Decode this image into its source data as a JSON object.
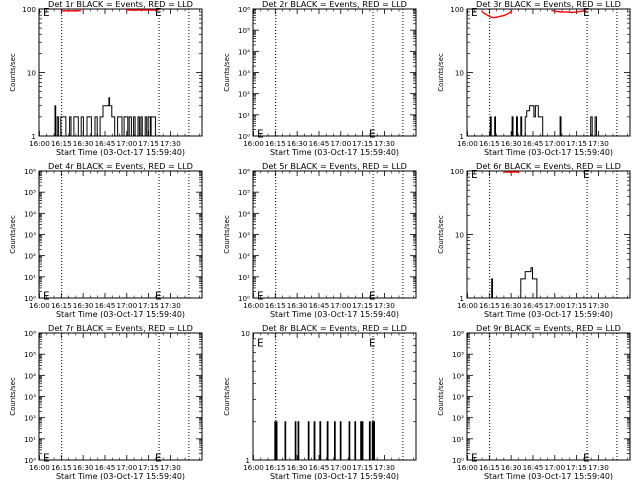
{
  "chart_data": [
    {
      "type": "line",
      "title": "Det 1r BLACK = Events, RED = LLD",
      "xlabel": "Start Time (03-Oct-17 15:59:40)",
      "ylabel": "Counts/sec",
      "y_scale": "log",
      "ylim": [
        1,
        100
      ],
      "y_tick_labels": [
        "1",
        "10",
        "100"
      ],
      "x_range_minutes": [
        0,
        112
      ],
      "x_tick_labels": [
        "16:00",
        "16:15",
        "16:30",
        "16:45",
        "17:00",
        "17:15",
        "17:30"
      ],
      "x_tick_minutes": [
        0.33,
        15.33,
        30.33,
        45.33,
        60.33,
        75.33,
        90.33
      ],
      "dotted_lines_minutes": [
        15.6,
        82.5,
        103
      ],
      "e_marker": {
        "label": "E",
        "x": [
          5,
          82
        ],
        "y": 97
      },
      "series": [
        {
          "color": "#000000",
          "x": [
            0,
            11,
            11,
            11.5,
            11.5,
            12.5,
            12.5,
            13.5,
            13.5,
            15,
            15,
            18.5,
            18.5,
            21,
            21,
            22,
            22,
            24,
            24,
            27,
            27,
            29,
            29,
            30.5,
            30.5,
            33,
            33,
            36,
            36,
            38.5,
            38.5,
            40,
            40,
            42,
            42,
            44,
            44,
            48,
            48,
            48.5,
            48.5,
            50,
            50,
            52,
            52,
            54,
            54,
            57,
            57,
            58.5,
            58.5,
            61,
            61,
            62,
            62,
            63.5,
            63.5,
            65,
            65,
            66,
            66,
            68,
            68,
            69,
            69,
            70,
            70,
            71,
            71,
            73,
            73,
            74,
            74,
            75,
            75,
            76.5,
            76.5,
            77,
            77,
            80,
            80,
            112
          ],
          "y": [
            1,
            1,
            3,
            3,
            1,
            1,
            2,
            2,
            1,
            1,
            2,
            2,
            1,
            1,
            2,
            2,
            1,
            1,
            2,
            2,
            1,
            1,
            2,
            2,
            1,
            1,
            2,
            2,
            1,
            1,
            2,
            2,
            1,
            1,
            2,
            2,
            3,
            3,
            4,
            4,
            3,
            3,
            2,
            2,
            1,
            1,
            2,
            2,
            1,
            1,
            2,
            2,
            1,
            1,
            2,
            2,
            1,
            1,
            2,
            2,
            1,
            1,
            2,
            2,
            1,
            1,
            2,
            2,
            1,
            1,
            2,
            2,
            1,
            1,
            2,
            2,
            1,
            1,
            2,
            2,
            1,
            1
          ]
        },
        {
          "color": "#ff0000",
          "x": [
            15.6,
            17,
            18.5,
            20,
            21.5,
            23,
            25,
            27,
            28.8
          ],
          "y": [
            95,
            93,
            94,
            93,
            93.5,
            94,
            93,
            94,
            95
          ]
        },
        {
          "color": "#ff0000",
          "x": [
            60,
            62,
            64,
            66,
            68,
            70,
            72,
            74,
            76,
            78,
            80,
            82
          ],
          "y": [
            97,
            96,
            96,
            96,
            96,
            96,
            96,
            96,
            96,
            96,
            96,
            97
          ]
        }
      ]
    },
    {
      "type": "line",
      "title": "Det 2r BLACK = Events, RED = LLD",
      "xlabel": "Start Time (03-Oct-17 15:59:40)",
      "ylabel": "Counts/sec",
      "y_scale": "log",
      "ylim": [
        1,
        1000000
      ],
      "y_tick_labels": [
        "10⁰",
        "10¹",
        "10²",
        "10³",
        "10⁴",
        "10⁵",
        "10⁶"
      ],
      "x_range_minutes": [
        0,
        112
      ],
      "x_tick_labels": [
        "16:00",
        "16:15",
        "16:30",
        "16:45",
        "17:00",
        "17:15",
        "17:30"
      ],
      "x_tick_minutes": [
        0.33,
        15.33,
        30.33,
        45.33,
        60.33,
        75.33,
        90.33
      ],
      "dotted_lines_minutes": [
        15.6,
        82.5,
        103
      ],
      "e_marker": {
        "label": "E",
        "x": [
          5,
          82
        ],
        "y": 1.6
      },
      "series": []
    },
    {
      "type": "line",
      "title": "Det 3r BLACK = Events, RED = LLD",
      "xlabel": "Start Time (03-Oct-17 15:59:40)",
      "ylabel": "Counts/sec",
      "y_scale": "log",
      "ylim": [
        1,
        100
      ],
      "y_tick_labels": [
        "1",
        "10",
        "100"
      ],
      "x_range_minutes": [
        0,
        112
      ],
      "x_tick_labels": [
        "16:00",
        "16:15",
        "16:30",
        "16:45",
        "17:00",
        "17:15",
        "17:30"
      ],
      "x_tick_minutes": [
        0.33,
        15.33,
        30.33,
        45.33,
        60.33,
        75.33,
        90.33
      ],
      "dotted_lines_minutes": [
        15.6,
        82.5,
        103
      ],
      "e_marker": {
        "label": "E",
        "x": [
          5,
          82
        ],
        "y": 97
      },
      "series": [
        {
          "color": "#000000",
          "x": [
            0,
            16,
            16,
            16.6,
            16.6,
            19,
            19,
            19.6,
            19.6,
            31,
            31,
            31.6,
            31.6,
            34,
            34,
            34.6,
            34.6,
            37,
            37,
            37.6,
            37.6,
            40,
            40,
            41,
            41,
            43,
            43,
            46,
            46,
            47,
            47,
            49,
            49,
            52,
            52,
            52.6,
            52.6,
            64,
            64,
            64.6,
            64.6,
            85,
            85,
            86,
            86,
            88,
            88,
            89,
            89,
            112
          ],
          "y": [
            1,
            1,
            2,
            2,
            1,
            1,
            2,
            2,
            1,
            1,
            2,
            2,
            1,
            1,
            2,
            2,
            1,
            1,
            2,
            2,
            1,
            1,
            2,
            2,
            2.5,
            2.5,
            3,
            3,
            2,
            2,
            3,
            3,
            2,
            2,
            1,
            1,
            1,
            1,
            2,
            2,
            1,
            1,
            2,
            2,
            1,
            1,
            2,
            2,
            1,
            1
          ]
        },
        {
          "color": "#ff0000",
          "x": [
            10,
            12,
            14,
            16,
            18,
            20,
            22,
            24,
            26,
            28,
            30,
            31
          ],
          "y": [
            92,
            85,
            80,
            75,
            73,
            74,
            76,
            78,
            80,
            84,
            90,
            95
          ]
        },
        {
          "color": "#ff0000",
          "x": [
            58,
            60,
            62,
            64,
            66,
            68,
            70,
            72,
            74,
            76,
            78,
            80,
            82
          ],
          "y": [
            95,
            93,
            91,
            90,
            90,
            90,
            89,
            88,
            89,
            90,
            92,
            93,
            95
          ]
        }
      ]
    },
    {
      "type": "line",
      "title": "Det 4r BLACK = Events, RED = LLD",
      "xlabel": "Start Time (03-Oct-17 15:59:40)",
      "ylabel": "Counts/sec",
      "y_scale": "log",
      "ylim": [
        1,
        1000000
      ],
      "y_tick_labels": [
        "10⁰",
        "10¹",
        "10²",
        "10³",
        "10⁴",
        "10⁵",
        "10⁶"
      ],
      "x_range_minutes": [
        0,
        112
      ],
      "x_tick_labels": [
        "16:00",
        "16:15",
        "16:30",
        "16:45",
        "17:00",
        "17:15",
        "17:30"
      ],
      "x_tick_minutes": [
        0.33,
        15.33,
        30.33,
        45.33,
        60.33,
        75.33,
        90.33
      ],
      "dotted_lines_minutes": [
        15.6,
        82.5,
        103
      ],
      "e_marker": {
        "label": "E",
        "x": [
          5,
          82
        ],
        "y": 1.6
      },
      "series": []
    },
    {
      "type": "line",
      "title": "Det 5r BLACK = Events, RED = LLD",
      "xlabel": "Start Time (03-Oct-17 15:59:40)",
      "ylabel": "Counts/sec",
      "y_scale": "log",
      "ylim": [
        1,
        1000000
      ],
      "y_tick_labels": [
        "10⁰",
        "10¹",
        "10²",
        "10³",
        "10⁴",
        "10⁵",
        "10⁶"
      ],
      "x_range_minutes": [
        0,
        112
      ],
      "x_tick_labels": [
        "16:00",
        "16:15",
        "16:30",
        "16:45",
        "17:00",
        "17:15",
        "17:30"
      ],
      "x_tick_minutes": [
        0.33,
        15.33,
        30.33,
        45.33,
        60.33,
        75.33,
        90.33
      ],
      "dotted_lines_minutes": [
        15.6,
        82.5,
        103
      ],
      "e_marker": {
        "label": "E",
        "x": [
          5,
          82
        ],
        "y": 1.6
      },
      "series": []
    },
    {
      "type": "line",
      "title": "Det 6r BLACK = Events, RED = LLD",
      "xlabel": "Start Time (03-Oct-17 15:59:40)",
      "ylabel": "Counts/sec",
      "y_scale": "log",
      "ylim": [
        1,
        100
      ],
      "y_tick_labels": [
        "1",
        "10",
        "100"
      ],
      "x_range_minutes": [
        0,
        112
      ],
      "x_tick_labels": [
        "16:00",
        "16:15",
        "16:30",
        "16:45",
        "17:00",
        "17:15",
        "17:30"
      ],
      "x_tick_minutes": [
        0.33,
        15.33,
        30.33,
        45.33,
        60.33,
        75.33,
        90.33
      ],
      "dotted_lines_minutes": [
        15.6,
        82.5,
        103
      ],
      "e_marker": {
        "label": "E",
        "x": [
          5,
          82
        ],
        "y": 97
      },
      "series": [
        {
          "color": "#000000",
          "x": [
            0,
            17,
            17,
            17.5,
            17.5,
            37,
            37,
            40,
            40,
            44,
            44,
            45,
            45,
            48,
            48,
            49,
            49,
            112
          ],
          "y": [
            1,
            1,
            2,
            2,
            1,
            1,
            2,
            2,
            2.6,
            2.6,
            3,
            3,
            2,
            2,
            1,
            1,
            1,
            1
          ]
        },
        {
          "color": "#ff0000",
          "x": [
            25,
            27,
            29,
            31,
            33,
            35,
            36
          ],
          "y": [
            97,
            96,
            96,
            96,
            96,
            96,
            97
          ]
        }
      ]
    },
    {
      "type": "line",
      "title": "Det 7r BLACK = Events, RED = LLD",
      "xlabel": "Start Time (03-Oct-17 15:59:40)",
      "ylabel": "Counts/sec",
      "y_scale": "log",
      "ylim": [
        1,
        1000000
      ],
      "y_tick_labels": [
        "10⁰",
        "10¹",
        "10²",
        "10³",
        "10⁴",
        "10⁵",
        "10⁶"
      ],
      "x_range_minutes": [
        0,
        112
      ],
      "x_tick_labels": [
        "16:00",
        "16:15",
        "16:30",
        "16:45",
        "17:00",
        "17:15",
        "17:30"
      ],
      "x_tick_minutes": [
        0.33,
        15.33,
        30.33,
        45.33,
        60.33,
        75.33,
        90.33
      ],
      "dotted_lines_minutes": [
        15.6,
        82.5,
        103
      ],
      "e_marker": {
        "label": "E",
        "x": [
          5,
          82
        ],
        "y": 1.6
      },
      "series": []
    },
    {
      "type": "line",
      "title": "Det 8r BLACK = Events, RED = LLD",
      "xlabel": "Start Time (03-Oct-17 15:59:40)",
      "ylabel": "Counts/sec",
      "y_scale": "log",
      "ylim": [
        1,
        10
      ],
      "y_tick_labels": [
        "1",
        "10"
      ],
      "x_range_minutes": [
        0,
        112
      ],
      "x_tick_labels": [
        "16:00",
        "16:15",
        "16:30",
        "16:45",
        "17:00",
        "17:15",
        "17:30"
      ],
      "x_tick_minutes": [
        0.33,
        15.33,
        30.33,
        45.33,
        60.33,
        75.33,
        90.33
      ],
      "dotted_lines_minutes": [
        15.6,
        82.5,
        103
      ],
      "e_marker": {
        "label": "E",
        "x": [
          5,
          82
        ],
        "y": 8.7
      },
      "series": [
        {
          "color": "#000000",
          "x": [
            0,
            15,
            15,
            15.5,
            15.5,
            16,
            16,
            16.5,
            16.5,
            22,
            22,
            22.5,
            22.5,
            29,
            29,
            29.5,
            29.5,
            31,
            31,
            31.5,
            31.5,
            38,
            38,
            38.5,
            38.5,
            42,
            42,
            42.5,
            42.5,
            46,
            46,
            46.5,
            46.5,
            51,
            51,
            51.5,
            51.5,
            56,
            56,
            56.5,
            56.5,
            60,
            60,
            60.5,
            60.5,
            66,
            66,
            66.5,
            66.5,
            70,
            70,
            70.5,
            70.5,
            74,
            74,
            74.5,
            74.5,
            75,
            75,
            75.5,
            75.5,
            80,
            80,
            80.5,
            80.5,
            82,
            82,
            82.5,
            82.5,
            83,
            83,
            83.5,
            83.5,
            112
          ],
          "y": [
            1,
            1,
            2,
            2,
            1,
            1,
            2,
            2,
            1,
            1,
            2,
            2,
            1,
            1,
            2,
            2,
            1,
            1,
            2,
            2,
            1,
            1,
            2,
            2,
            1,
            1,
            2,
            2,
            1,
            1,
            2,
            2,
            1,
            1,
            2,
            2,
            1,
            1,
            2,
            2,
            1,
            1,
            2,
            2,
            1,
            1,
            2,
            2,
            1,
            1,
            2,
            2,
            1,
            1,
            2,
            2,
            1,
            1,
            2,
            2,
            1,
            1,
            2,
            2,
            1,
            1,
            2,
            2,
            1,
            1,
            2,
            2,
            1,
            1
          ]
        }
      ]
    },
    {
      "type": "line",
      "title": "Det 9r BLACK = Events, RED = LLD",
      "xlabel": "Start Time (03-Oct-17 15:59:40)",
      "ylabel": "Counts/sec",
      "y_scale": "log",
      "ylim": [
        1,
        1000000
      ],
      "y_tick_labels": [
        "10⁰",
        "10¹",
        "10²",
        "10³",
        "10⁴",
        "10⁵",
        "10⁶"
      ],
      "x_range_minutes": [
        0,
        112
      ],
      "x_tick_labels": [
        "16:00",
        "16:15",
        "16:30",
        "16:45",
        "17:00",
        "17:15",
        "17:30"
      ],
      "x_tick_minutes": [
        0.33,
        15.33,
        30.33,
        45.33,
        60.33,
        75.33,
        90.33
      ],
      "dotted_lines_minutes": [
        15.6,
        82.5,
        103
      ],
      "e_marker": {
        "label": "E",
        "x": [
          5,
          82
        ],
        "y": 1.6
      },
      "series": []
    }
  ]
}
